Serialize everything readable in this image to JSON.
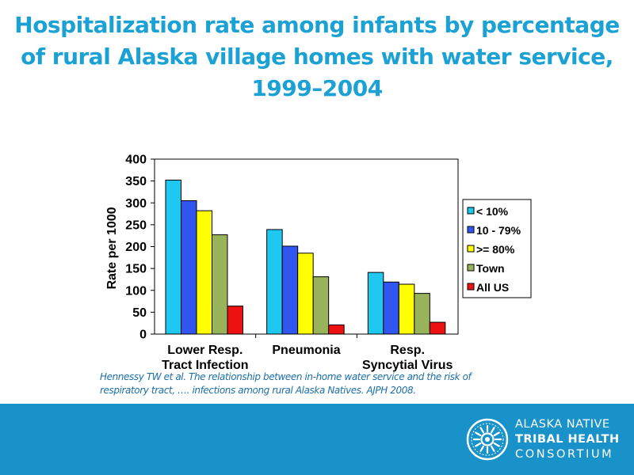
{
  "slide": {
    "title_lines": [
      "Hospitalization rate among infants by percentage",
      "of rural Alaska village homes with water service,",
      "1999–2004"
    ],
    "citation_lines": [
      "Hennessy TW et al. The relationship between in-home water service and the risk of",
      "respiratory tract, …. infections among rural  Alaska Natives. AJPH 2008."
    ]
  },
  "footer": {
    "org_lines": [
      "ALASKA NATIVE",
      "TRIBAL HEALTH",
      "CONSORTIUM"
    ],
    "background": "#1892c8",
    "logo_icon": "tribal-health-sun-logo"
  },
  "chart_data": {
    "type": "bar",
    "title": "",
    "xlabel": "",
    "ylabel": "Rate per 1000",
    "ylim": [
      0,
      400
    ],
    "yticks": [
      0,
      50,
      100,
      150,
      200,
      250,
      300,
      350,
      400
    ],
    "grid": false,
    "legend_position": "right",
    "categories": [
      [
        "Lower Resp.",
        "Tract Infection"
      ],
      [
        "Pneumonia"
      ],
      [
        "Resp.",
        "Syncytial Virus"
      ]
    ],
    "series": [
      {
        "name": "< 10%",
        "color": "#1ec8f0",
        "values": [
          352,
          239,
          141
        ]
      },
      {
        "name": "10 - 79%",
        "color": "#3055f0",
        "values": [
          305,
          201,
          119
        ]
      },
      {
        "name": ">= 80%",
        "color": "#ffff00",
        "values": [
          282,
          185,
          114
        ]
      },
      {
        "name": "Town",
        "color": "#99b35a",
        "values": [
          227,
          131,
          93
        ]
      },
      {
        "name": "All US",
        "color": "#ee1111",
        "values": [
          64,
          21,
          27
        ]
      }
    ]
  }
}
